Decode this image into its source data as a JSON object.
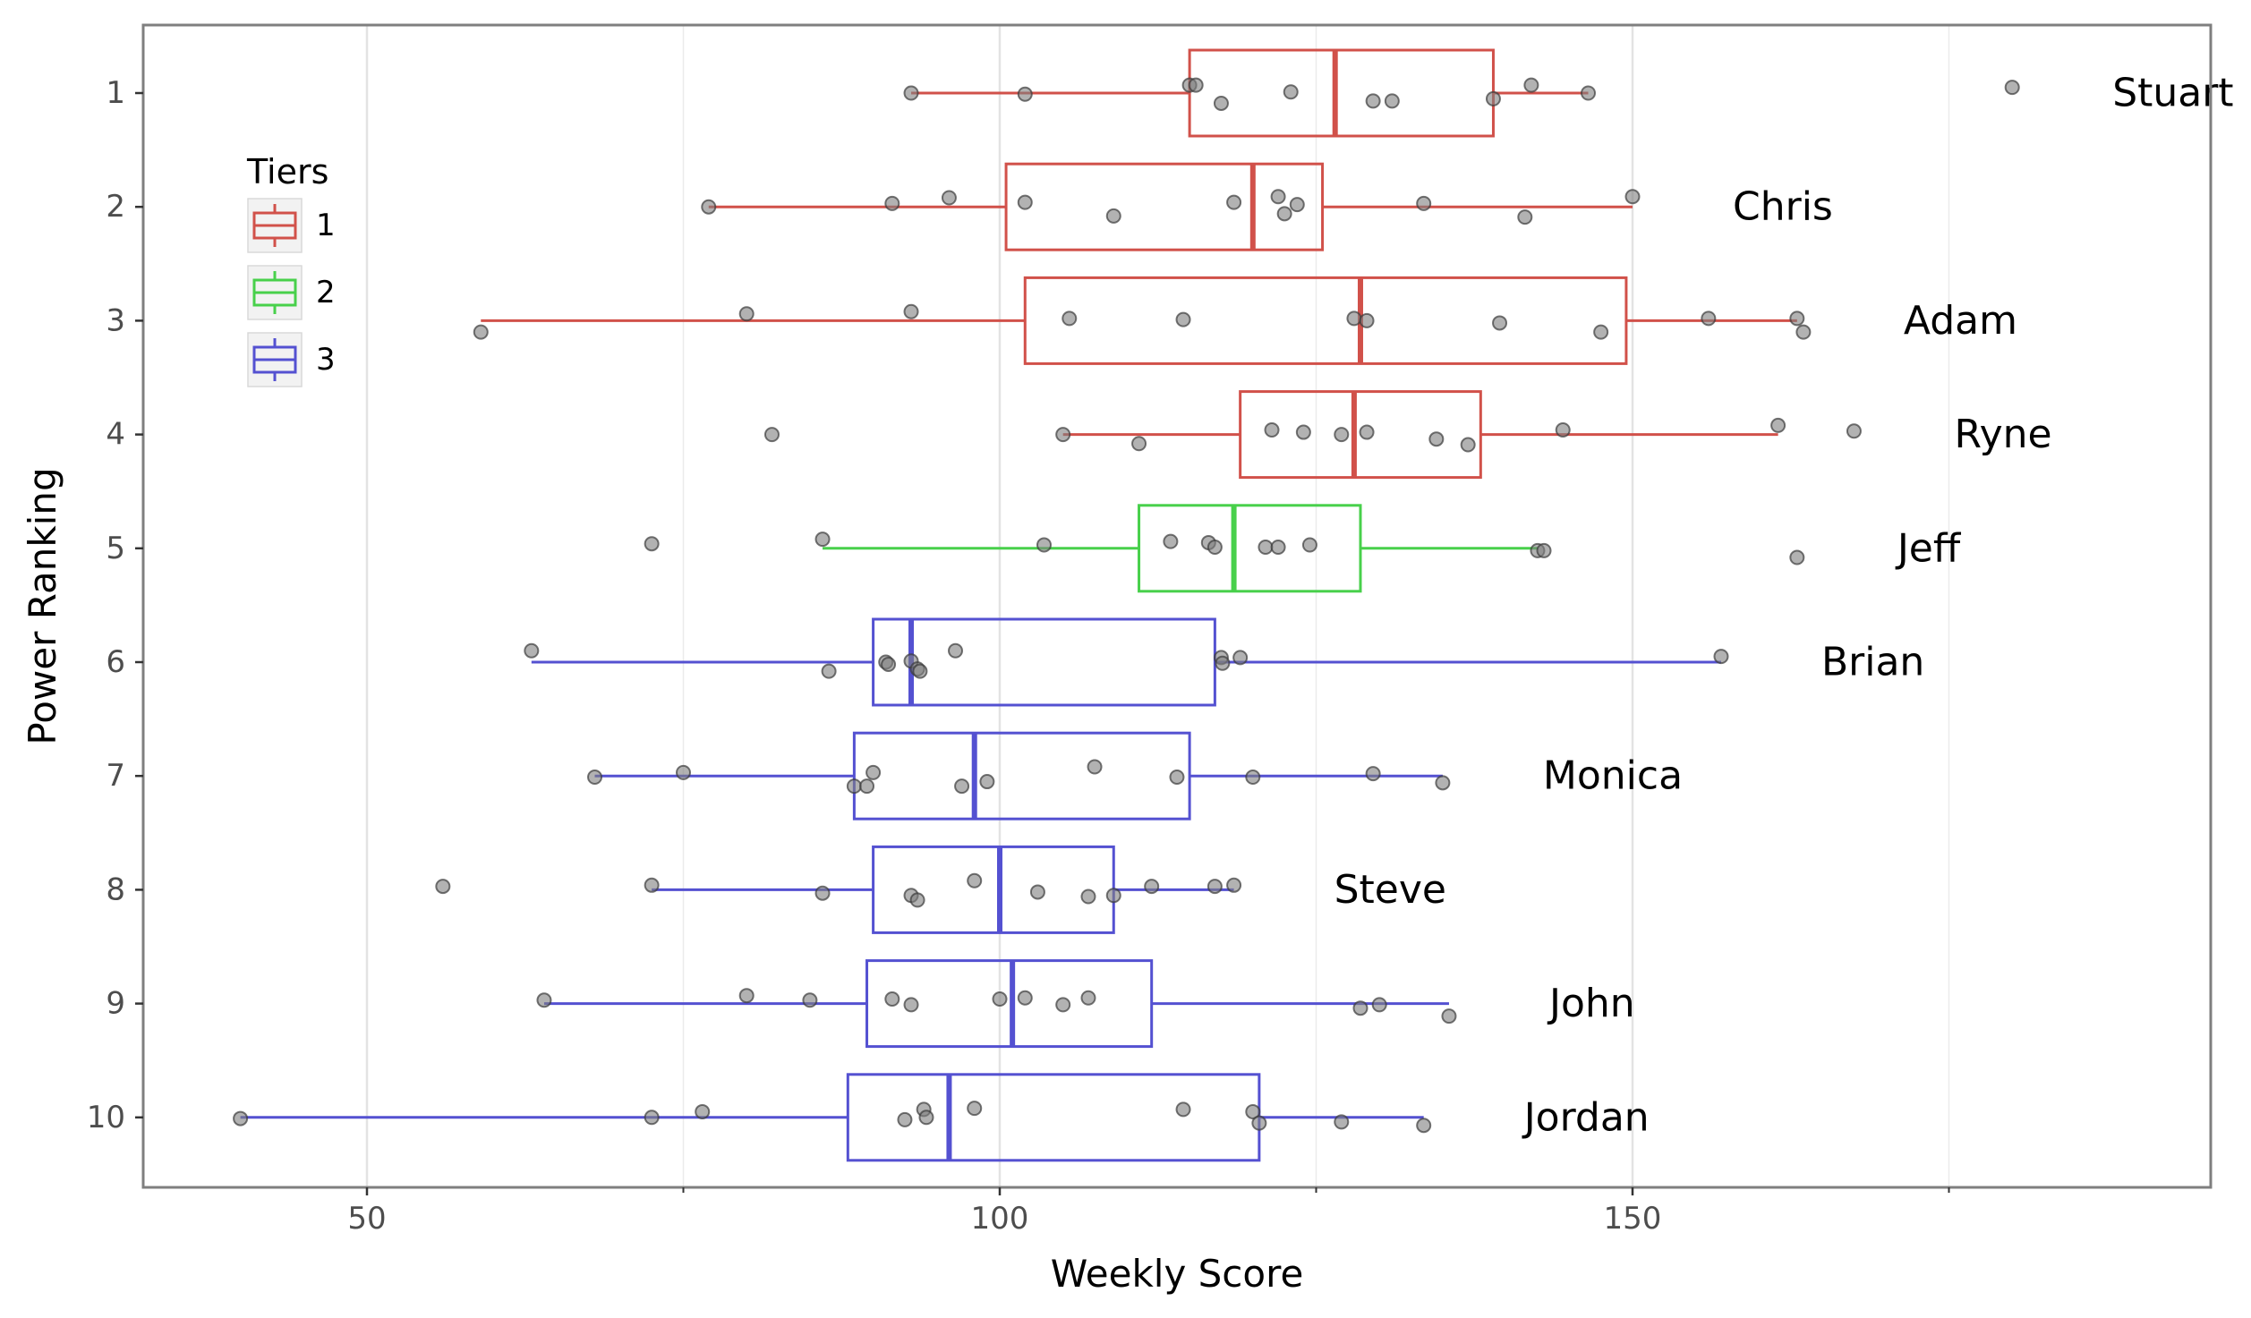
{
  "chart_data": {
    "type": "boxplot",
    "orientation": "horizontal",
    "xlabel": "Weekly Score",
    "ylabel": "Power Ranking",
    "xlim": [
      32,
      202
    ],
    "x_ticks": [
      50,
      100,
      150
    ],
    "x_minor_ticks": [
      75,
      125,
      175
    ],
    "y_categories": [
      "1",
      "2",
      "3",
      "4",
      "5",
      "6",
      "7",
      "8",
      "9",
      "10"
    ],
    "grid": true,
    "legend": {
      "title": "Tiers",
      "position": "top-left",
      "entries": [
        "1",
        "2",
        "3"
      ]
    },
    "tier_colors": {
      "1": "#d1514a",
      "2": "#48d04b",
      "3": "#5451d1"
    },
    "point_color": "#7f7f7f",
    "teams": [
      {
        "rank": 1,
        "name": "Stuart",
        "tier": "1",
        "whisker_low": 93,
        "q1": 115,
        "median": 126.5,
        "q3": 139,
        "whisker_high": 146.5,
        "points": [
          [
            93,
            0
          ],
          [
            102,
            -0.01
          ],
          [
            115,
            0.07
          ],
          [
            115.5,
            0.07
          ],
          [
            117.5,
            -0.09
          ],
          [
            123,
            0.01
          ],
          [
            129.5,
            -0.07
          ],
          [
            131,
            -0.07
          ],
          [
            139,
            -0.05
          ],
          [
            142,
            0.07
          ],
          [
            146.5,
            0
          ],
          [
            180,
            0.05
          ]
        ]
      },
      {
        "rank": 2,
        "name": "Chris",
        "tier": "1",
        "whisker_low": 77,
        "q1": 100.5,
        "median": 120,
        "q3": 125.5,
        "whisker_high": 150,
        "points": [
          [
            77,
            0
          ],
          [
            91.5,
            0.03
          ],
          [
            96,
            0.08
          ],
          [
            102,
            0.04
          ],
          [
            109,
            -0.08
          ],
          [
            118.5,
            0.04
          ],
          [
            122,
            0.09
          ],
          [
            122.5,
            -0.06
          ],
          [
            123.5,
            0.02
          ],
          [
            133.5,
            0.03
          ],
          [
            141.5,
            -0.09
          ],
          [
            150,
            0.09
          ]
        ]
      },
      {
        "rank": 3,
        "name": "Adam",
        "tier": "1",
        "whisker_low": 59,
        "q1": 102,
        "median": 128.5,
        "q3": 149.5,
        "whisker_high": 163,
        "points": [
          [
            59,
            -0.1
          ],
          [
            80,
            0.06
          ],
          [
            93,
            0.08
          ],
          [
            105.5,
            0.02
          ],
          [
            114.5,
            0.01
          ],
          [
            128,
            0.02
          ],
          [
            129,
            0
          ],
          [
            139.5,
            -0.02
          ],
          [
            147.5,
            -0.1
          ],
          [
            156,
            0.02
          ],
          [
            163,
            0.02
          ],
          [
            163.5,
            -0.1
          ]
        ]
      },
      {
        "rank": 4,
        "name": "Ryne",
        "tier": "1",
        "whisker_low": 105,
        "q1": 119,
        "median": 128,
        "q3": 138,
        "whisker_high": 161.5,
        "points": [
          [
            82,
            0
          ],
          [
            105,
            0
          ],
          [
            111,
            -0.08
          ],
          [
            121.5,
            0.04
          ],
          [
            124,
            0.02
          ],
          [
            127,
            0
          ],
          [
            129,
            0.02
          ],
          [
            134.5,
            -0.04
          ],
          [
            137,
            -0.09
          ],
          [
            144.5,
            0.04
          ],
          [
            161.5,
            0.08
          ],
          [
            167.5,
            0.03
          ]
        ]
      },
      {
        "rank": 5,
        "name": "Jeff",
        "tier": "2",
        "whisker_low": 86,
        "q1": 111,
        "median": 118.5,
        "q3": 128.5,
        "whisker_high": 142.5,
        "points": [
          [
            72.5,
            0.04
          ],
          [
            86,
            0.08
          ],
          [
            103.5,
            0.03
          ],
          [
            113.5,
            0.06
          ],
          [
            116.5,
            0.05
          ],
          [
            117,
            0.01
          ],
          [
            121,
            0.01
          ],
          [
            122,
            0.01
          ],
          [
            124.5,
            0.03
          ],
          [
            142.5,
            -0.02
          ],
          [
            143,
            -0.02
          ],
          [
            163,
            -0.08
          ]
        ]
      },
      {
        "rank": 6,
        "name": "Brian",
        "tier": "3",
        "whisker_low": 63,
        "q1": 90,
        "median": 93,
        "q3": 117,
        "whisker_high": 157,
        "points": [
          [
            63,
            0.1
          ],
          [
            86.5,
            -0.08
          ],
          [
            91,
            0
          ],
          [
            91.2,
            -0.02
          ],
          [
            93,
            0.01
          ],
          [
            93.5,
            -0.06
          ],
          [
            93.7,
            -0.08
          ],
          [
            96.5,
            0.1
          ],
          [
            117.5,
            0.04
          ],
          [
            117.6,
            -0.01
          ],
          [
            119,
            0.04
          ],
          [
            157,
            0.05
          ]
        ]
      },
      {
        "rank": 7,
        "name": "Monica",
        "tier": "3",
        "whisker_low": 68,
        "q1": 88.5,
        "median": 98,
        "q3": 115,
        "whisker_high": 135,
        "points": [
          [
            68,
            -0.01
          ],
          [
            75,
            0.03
          ],
          [
            88.5,
            -0.09
          ],
          [
            89.5,
            -0.09
          ],
          [
            90,
            0.03
          ],
          [
            97,
            -0.09
          ],
          [
            99,
            -0.05
          ],
          [
            107.5,
            0.08
          ],
          [
            114,
            -0.01
          ],
          [
            120,
            -0.01
          ],
          [
            129.5,
            0.02
          ],
          [
            135,
            -0.06
          ]
        ]
      },
      {
        "rank": 8,
        "name": "Steve",
        "tier": "3",
        "whisker_low": 72.5,
        "q1": 90,
        "median": 100,
        "q3": 109,
        "whisker_high": 118.5,
        "points": [
          [
            56,
            0.03
          ],
          [
            72.5,
            0.04
          ],
          [
            86,
            -0.03
          ],
          [
            93,
            -0.05
          ],
          [
            93.5,
            -0.09
          ],
          [
            98,
            0.08
          ],
          [
            103,
            -0.02
          ],
          [
            107,
            -0.06
          ],
          [
            109,
            -0.05
          ],
          [
            112,
            0.03
          ],
          [
            117,
            0.03
          ],
          [
            118.5,
            0.04
          ]
        ]
      },
      {
        "rank": 9,
        "name": "John",
        "tier": "3",
        "whisker_low": 64,
        "q1": 89.5,
        "median": 101,
        "q3": 112,
        "whisker_high": 135.5,
        "points": [
          [
            64,
            0.03
          ],
          [
            80,
            0.07
          ],
          [
            85,
            0.03
          ],
          [
            91.5,
            0.04
          ],
          [
            93,
            -0.01
          ],
          [
            100,
            0.04
          ],
          [
            102,
            0.05
          ],
          [
            105,
            -0.01
          ],
          [
            107,
            0.05
          ],
          [
            128.5,
            -0.04
          ],
          [
            130,
            -0.01
          ],
          [
            135.5,
            -0.11
          ]
        ]
      },
      {
        "rank": 10,
        "name": "Jordan",
        "tier": "3",
        "whisker_low": 40,
        "q1": 88,
        "median": 96,
        "q3": 120.5,
        "whisker_high": 133.5,
        "points": [
          [
            40,
            -0.01
          ],
          [
            72.5,
            0
          ],
          [
            76.5,
            0.05
          ],
          [
            92.5,
            -0.02
          ],
          [
            94,
            0.07
          ],
          [
            94.2,
            0
          ],
          [
            98,
            0.08
          ],
          [
            114.5,
            0.07
          ],
          [
            120,
            0.05
          ],
          [
            120.5,
            -0.05
          ],
          [
            127,
            -0.04
          ],
          [
            133.5,
            -0.07
          ]
        ]
      }
    ]
  }
}
